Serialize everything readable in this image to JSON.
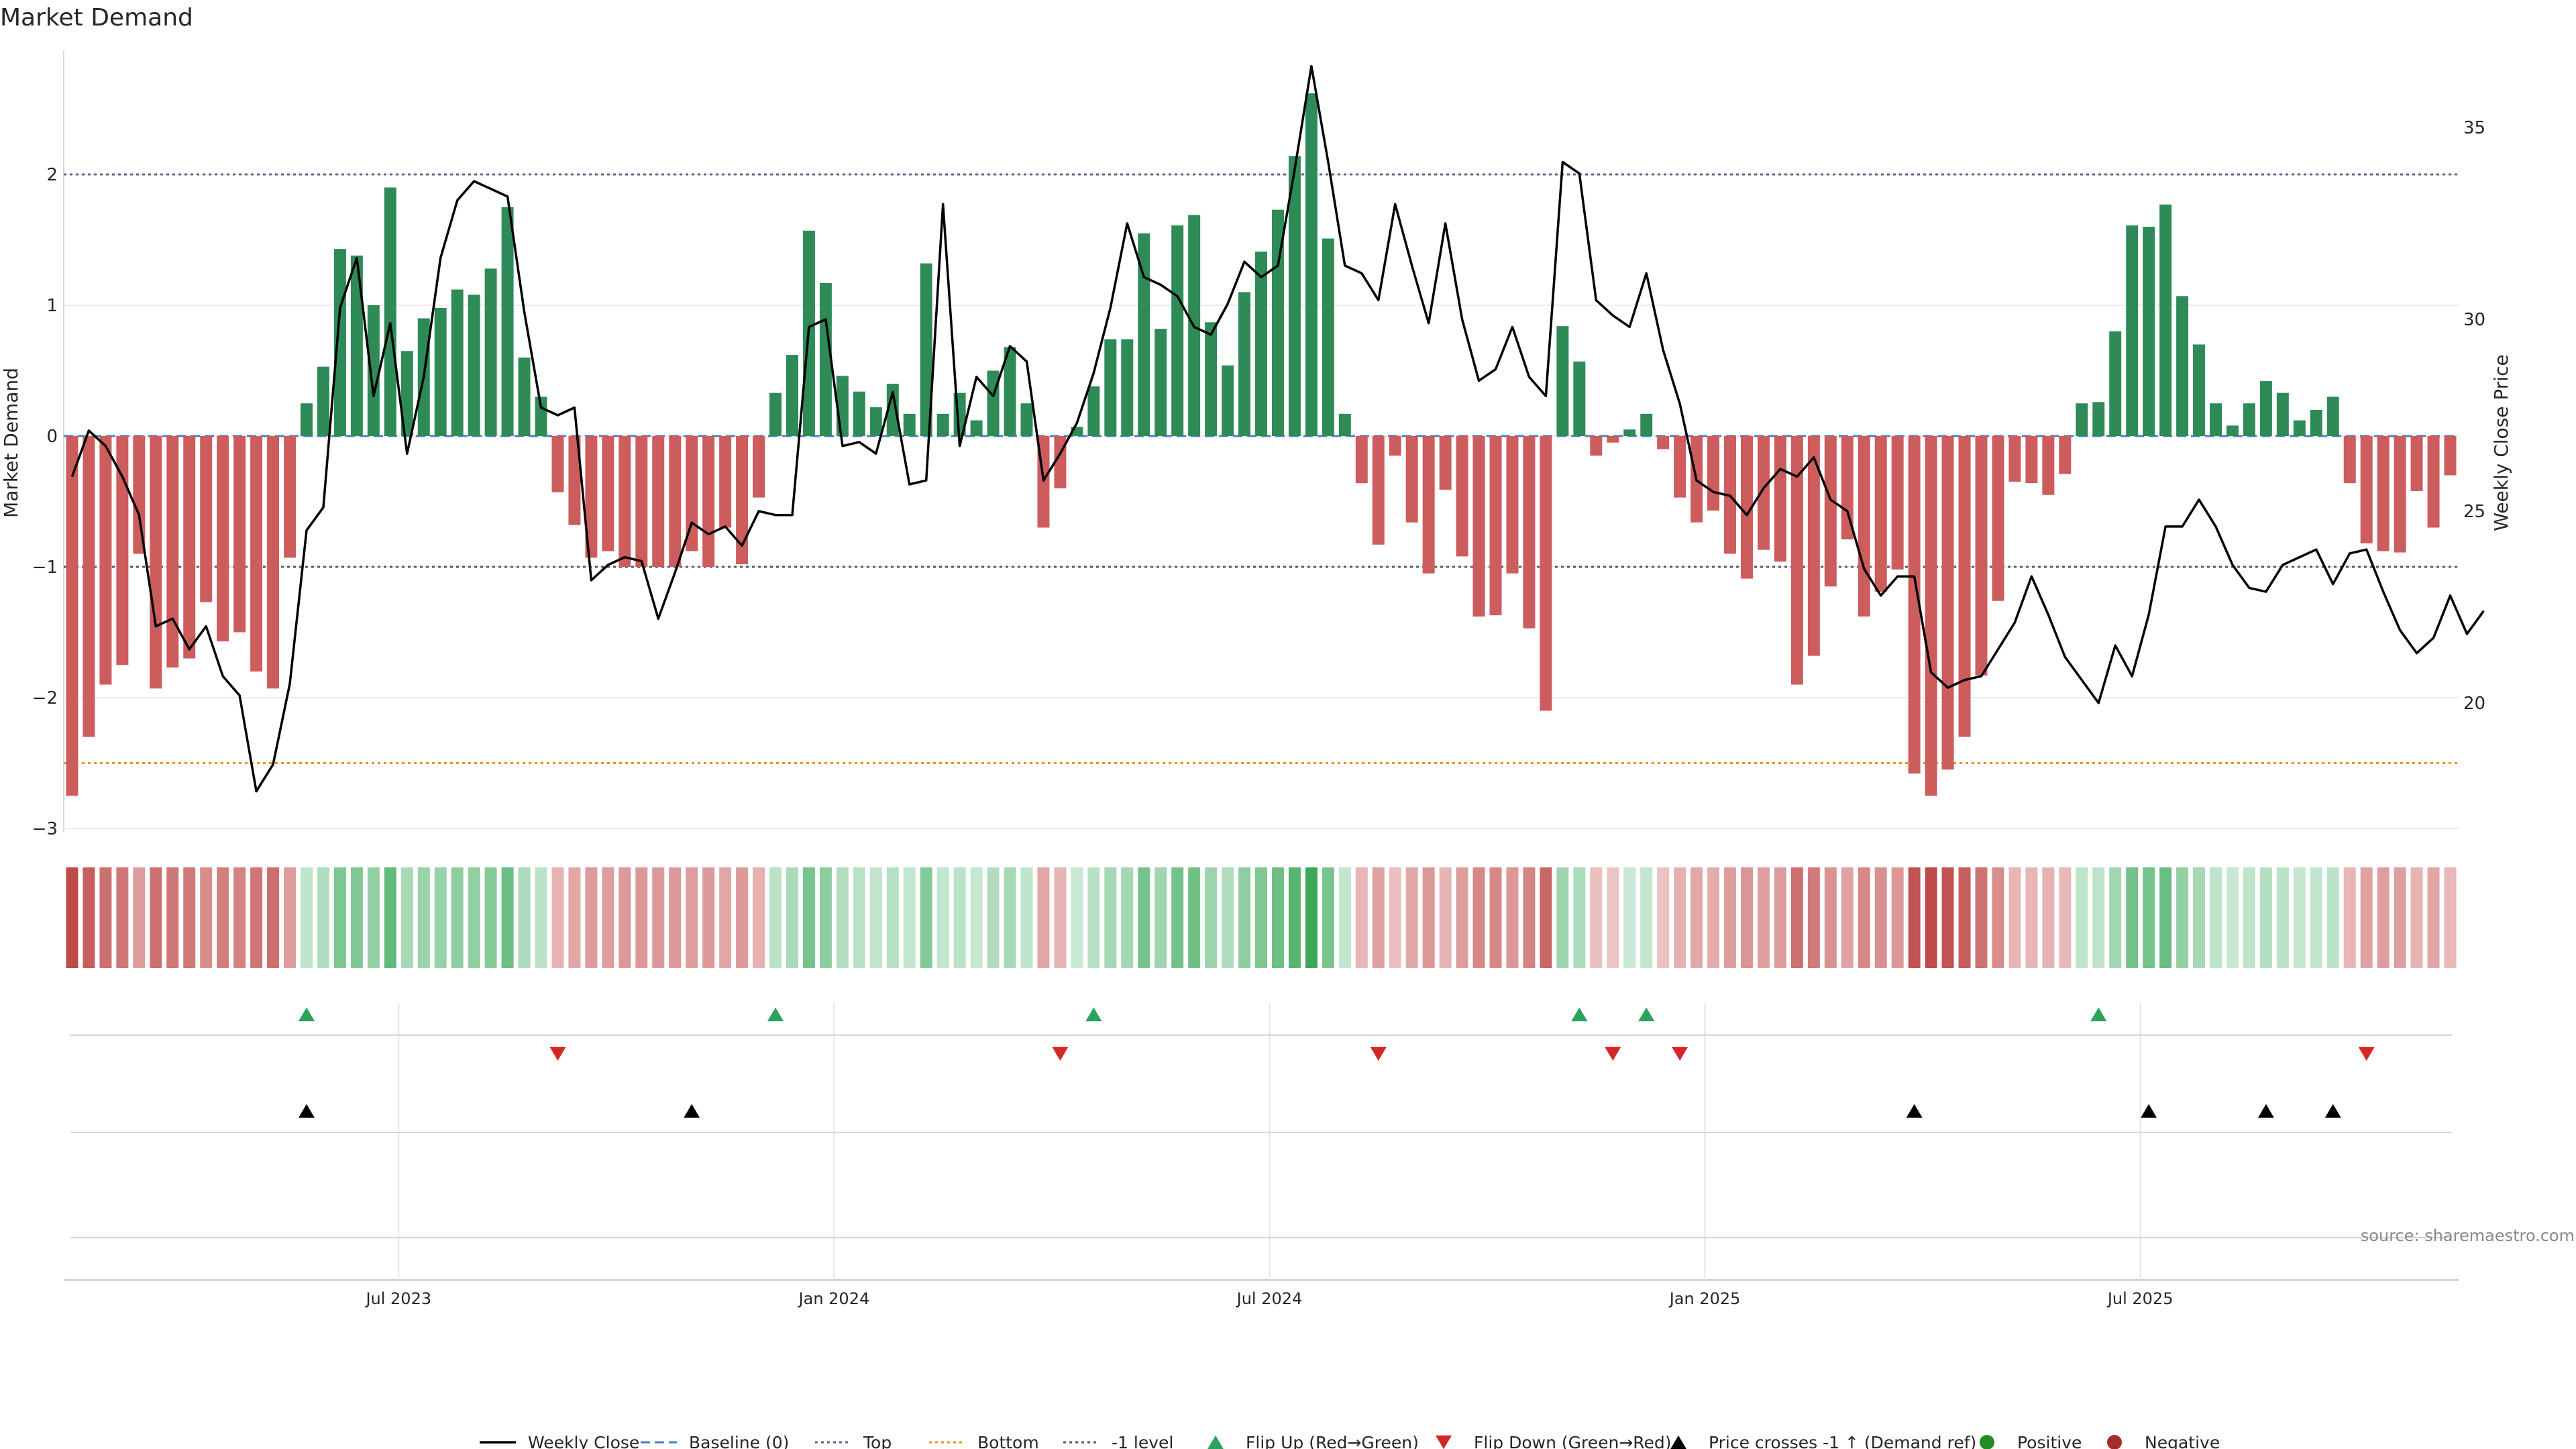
{
  "chart_data": {
    "type": "bar",
    "title": "Market Demand",
    "ylabel": "Market Demand",
    "y2label": "Weekly Close Price",
    "ylim": [
      -3,
      2.8
    ],
    "y_ticks": [
      2,
      1,
      0,
      -1,
      -2,
      -3
    ],
    "y_tick_labels": [
      "2",
      "1",
      "0",
      "−1",
      "−2",
      "−3"
    ],
    "y2lim": [
      16,
      38
    ],
    "y2_ticks": [
      35,
      30,
      25,
      20
    ],
    "y2_tick_labels": [
      "35",
      "30",
      "25",
      "20"
    ],
    "x_ticks": [
      20,
      46,
      72,
      98,
      124
    ],
    "x_tick_labels": [
      "Jul 2023",
      "Jan 2024",
      "Jul 2024",
      "Jan 2025",
      "Jul 2025"
    ],
    "grid": true,
    "reference_lines": {
      "top": 2,
      "bottom": -2.5,
      "minus_one": -1,
      "baseline": 0
    },
    "demand": [
      -2.75,
      -2.3,
      -1.9,
      -1.75,
      -0.9,
      -1.93,
      -1.77,
      -1.7,
      -1.27,
      -1.57,
      -1.5,
      -1.8,
      -1.93,
      -0.93,
      0.25,
      0.53,
      1.43,
      1.38,
      1.0,
      1.9,
      0.65,
      0.9,
      0.98,
      1.12,
      1.08,
      1.28,
      1.75,
      0.6,
      0.3,
      -0.43,
      -0.68,
      -0.93,
      -0.88,
      -1.0,
      -1.0,
      -1.0,
      -1.0,
      -0.88,
      -1.0,
      -0.7,
      -0.98,
      -0.47,
      0.33,
      0.62,
      1.57,
      1.17,
      0.46,
      0.34,
      0.22,
      0.4,
      0.17,
      1.32,
      0.17,
      0.33,
      0.12,
      0.5,
      0.68,
      0.25,
      -0.7,
      -0.4,
      0.07,
      0.38,
      0.74,
      0.74,
      1.55,
      0.82,
      1.61,
      1.69,
      0.87,
      0.54,
      1.1,
      1.41,
      1.73,
      2.14,
      2.62,
      1.51,
      0.17,
      -0.36,
      -0.83,
      -0.15,
      -0.66,
      -1.05,
      -0.41,
      -0.92,
      -1.38,
      -1.37,
      -1.05,
      -1.47,
      -2.1,
      0.84,
      0.57,
      -0.15,
      -0.05,
      0.05,
      0.17,
      -0.1,
      -0.47,
      -0.66,
      -0.57,
      -0.9,
      -1.09,
      -0.87,
      -0.96,
      -1.9,
      -1.68,
      -1.15,
      -0.79,
      -1.38,
      -1.19,
      -1.02,
      -2.58,
      -2.75,
      -2.55,
      -2.3,
      -1.83,
      -1.26,
      -0.35,
      -0.36,
      -0.45,
      -0.29,
      0.25,
      0.26,
      0.8,
      1.61,
      1.6,
      1.77,
      1.07,
      0.7,
      0.25,
      0.08,
      0.25,
      0.42,
      0.33,
      0.12,
      0.2,
      0.3,
      -0.36,
      -0.82,
      -0.88,
      -0.89,
      -0.42,
      -0.7,
      -0.3
    ],
    "close": [
      25.9,
      27.1,
      26.7,
      25.9,
      24.9,
      22.0,
      22.2,
      21.4,
      22.0,
      20.7,
      20.2,
      17.7,
      18.4,
      20.5,
      24.5,
      25.1,
      30.3,
      31.6,
      28.0,
      29.9,
      26.5,
      28.5,
      31.6,
      33.1,
      33.6,
      33.4,
      33.2,
      30.2,
      27.7,
      27.5,
      27.7,
      23.2,
      23.6,
      23.8,
      23.7,
      22.2,
      23.4,
      24.7,
      24.4,
      24.6,
      24.1,
      25.0,
      24.9,
      24.9,
      29.8,
      30.0,
      26.7,
      26.8,
      26.5,
      28.1,
      25.7,
      25.8,
      33.0,
      26.7,
      28.5,
      28.0,
      29.3,
      28.9,
      25.8,
      26.5,
      27.3,
      28.6,
      30.3,
      32.5,
      31.1,
      30.9,
      30.6,
      29.8,
      29.6,
      30.4,
      31.5,
      31.1,
      31.4,
      33.9,
      36.6,
      34.1,
      31.4,
      31.2,
      30.5,
      33.0,
      31.4,
      29.9,
      32.5,
      30.0,
      28.4,
      28.7,
      29.8,
      28.5,
      28.0,
      34.1,
      33.8,
      30.5,
      30.1,
      29.8,
      31.2,
      29.2,
      27.8,
      25.8,
      25.5,
      25.4,
      24.9,
      25.6,
      26.1,
      25.9,
      26.4,
      25.3,
      25.0,
      23.5,
      22.8,
      23.3,
      23.3,
      20.8,
      20.4,
      20.6,
      20.7,
      21.4,
      22.1,
      23.3,
      22.3,
      21.2,
      20.6,
      20.0,
      21.5,
      20.7,
      22.3,
      24.6,
      24.6,
      25.3,
      24.6,
      23.6,
      23.0,
      22.9,
      23.6,
      23.8,
      24.0,
      23.1,
      23.9,
      24.0,
      22.9,
      21.9,
      21.3,
      21.7,
      22.8,
      21.8,
      22.4
    ],
    "flip_up": [
      14,
      42,
      61,
      90,
      94,
      121
    ],
    "flip_down": [
      29,
      59,
      78,
      92,
      96,
      137
    ],
    "price_crosses": [
      14,
      37,
      110,
      124,
      131,
      135
    ],
    "colors": {
      "positive_bar": "#2e8b57",
      "negative_bar": "#cd5c5c",
      "close_line": "#000000",
      "top_line": "#6a5f94",
      "bottom_line": "#e8961f",
      "minus_one_line": "#555577",
      "baseline": "#4a7fbf",
      "flip_up": "#2ca25f",
      "flip_down": "#d62728",
      "cross": "#000000",
      "positive_marker": "#228b22",
      "negative_marker": "#a52a2a"
    },
    "legend_position": "bottom-center",
    "legend": [
      {
        "label": "Weekly Close",
        "symbol": "line"
      },
      {
        "label": "Baseline (0)",
        "symbol": "dash"
      },
      {
        "label": "Top",
        "symbol": "dot-purple"
      },
      {
        "label": "Bottom",
        "symbol": "dot-orange"
      },
      {
        "label": "-1 level",
        "symbol": "dot-grey"
      },
      {
        "label": "Flip Up (Red→Green)",
        "symbol": "tri-up-green"
      },
      {
        "label": "Flip Down (Green→Red)",
        "symbol": "tri-down-red"
      },
      {
        "label": "Price crosses -1 ↑ (Demand ref)",
        "symbol": "tri-up-black"
      },
      {
        "label": "Positive",
        "symbol": "dot-green"
      },
      {
        "label": "Negative",
        "symbol": "dot-red"
      }
    ],
    "source": "source: sharemaestro.com"
  }
}
